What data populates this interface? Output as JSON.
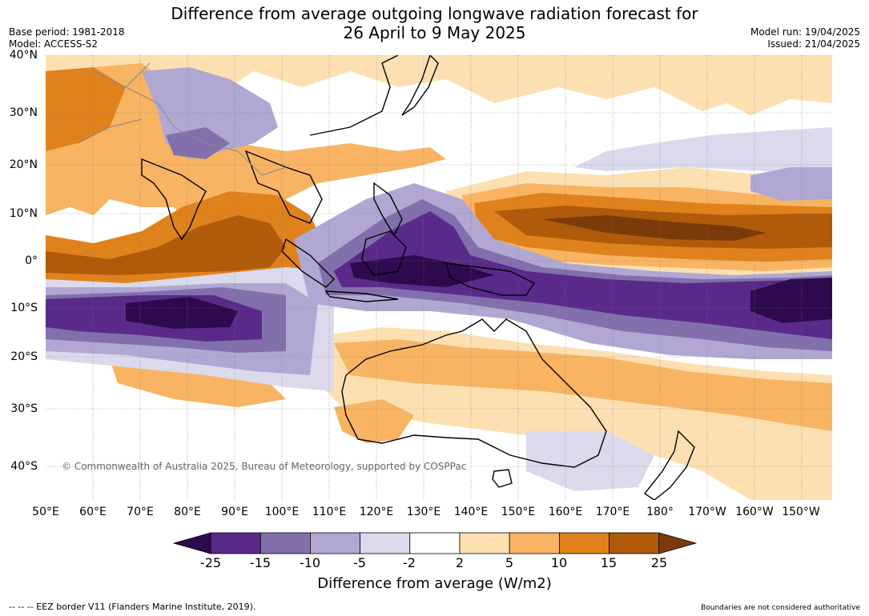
{
  "title": {
    "line1": "Difference from average outgoing longwave radiation forecast for",
    "line2": "26 April to 9 May 2025"
  },
  "meta": {
    "base_period": "Base period: 1981-2018",
    "model": "Model: ACCESS-S2",
    "model_run": "Model run: 19/04/2025",
    "issued": "Issued: 21/04/2025"
  },
  "axes": {
    "lat_labels": [
      "40°N",
      "30°N",
      "20°N",
      "10°N",
      "0°",
      "10°S",
      "20°S",
      "30°S",
      "40°S"
    ],
    "lon_labels": [
      "50°E",
      "60°E",
      "70°E",
      "80°E",
      "90°E",
      "100°E",
      "110°E",
      "120°E",
      "130°E",
      "140°E",
      "150°E",
      "160°E",
      "170°E",
      "180°",
      "170°W",
      "160°W",
      "150°W"
    ]
  },
  "copyright": "© Commonwealth of Australia 2025, Bureau of Meteorology, supported by COSPPac",
  "colorbar": {
    "labels": [
      "-25",
      "-15",
      "-10",
      "-5",
      "-2",
      "2",
      "5",
      "10",
      "15",
      "25"
    ],
    "colors": [
      "#2d0a4e",
      "#5a2a8a",
      "#8270ad",
      "#b0a8d2",
      "#dadaec",
      "#ffffff",
      "#fde0b2",
      "#f8b462",
      "#e0821c",
      "#b05a0a",
      "#7a3a0a"
    ],
    "title": "Difference from average (W/m2)"
  },
  "footer": {
    "eez": "--  --  -- EEZ border V11 (Flanders Marine Institute, 2019).",
    "disclaimer": "Boundaries are not considered authoritative"
  },
  "colors": {
    "strong_negative": "#2d0a4e",
    "negative": "#5a2a8a",
    "moderate_negative": "#8270ad",
    "weak_negative": "#b0a8d2",
    "slight_negative": "#dadaec",
    "neutral": "#ffffff",
    "slight_positive": "#fde0b2",
    "weak_positive": "#f8b462",
    "positive": "#e0821c",
    "strong_positive": "#b05a0a",
    "very_strong_positive": "#7a3a0a"
  }
}
